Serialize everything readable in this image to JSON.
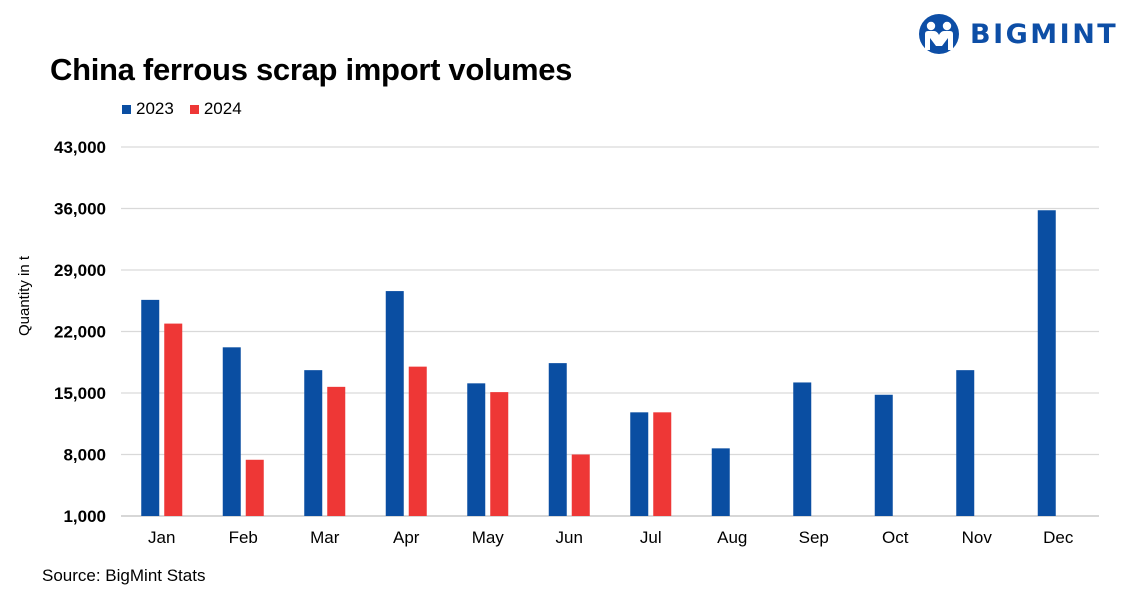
{
  "logo": {
    "text": "BIGMINT",
    "icon": "people-in-circle-icon",
    "color": "#0d4ea6"
  },
  "chart_data": {
    "type": "bar",
    "title": "China ferrous scrap import volumes",
    "ylabel": "Quantity in t",
    "xlabel": "",
    "categories": [
      "Jan",
      "Feb",
      "Mar",
      "Apr",
      "May",
      "Jun",
      "Jul",
      "Aug",
      "Sep",
      "Oct",
      "Nov",
      "Dec"
    ],
    "series": [
      {
        "name": "2023",
        "color": "#0a4ea2",
        "values": [
          25600,
          20200,
          17600,
          26600,
          16100,
          18400,
          12800,
          8700,
          16200,
          14800,
          17600,
          35800
        ]
      },
      {
        "name": "2024",
        "color": "#ee3736",
        "values": [
          22900,
          7400,
          15700,
          18000,
          15100,
          8000,
          12800,
          null,
          null,
          null,
          null,
          null
        ]
      }
    ],
    "ylim": [
      1000,
      43000
    ],
    "yticks": [
      "1,000",
      "8,000",
      "15,000",
      "22,000",
      "29,000",
      "36,000",
      "43,000"
    ],
    "grid": true,
    "legend": "top-left"
  },
  "source": "Source: BigMint Stats"
}
